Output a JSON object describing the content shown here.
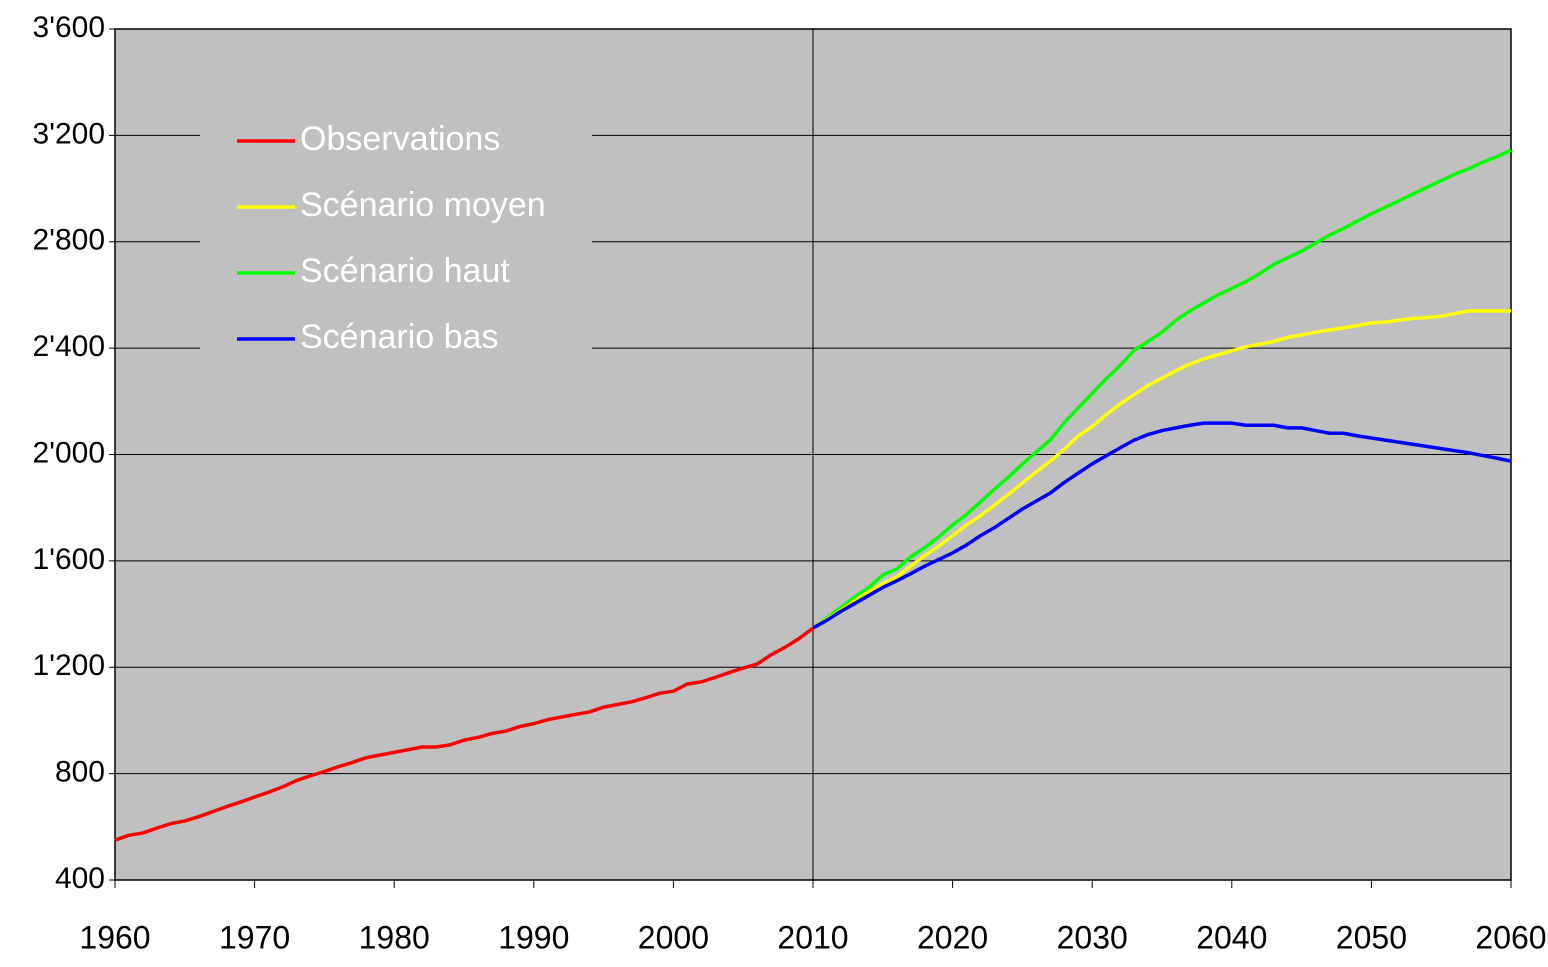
{
  "chart_data": {
    "type": "line",
    "x": [
      1960,
      1961,
      1962,
      1963,
      1964,
      1965,
      1966,
      1967,
      1968,
      1969,
      1970,
      1971,
      1972,
      1973,
      1974,
      1975,
      1976,
      1977,
      1978,
      1979,
      1980,
      1981,
      1982,
      1983,
      1984,
      1985,
      1986,
      1987,
      1988,
      1989,
      1990,
      1991,
      1992,
      1993,
      1994,
      1995,
      1996,
      1997,
      1998,
      1999,
      2000,
      2001,
      2002,
      2003,
      2004,
      2005,
      2006,
      2007,
      2008,
      2009,
      2010,
      2011,
      2012,
      2013,
      2014,
      2015,
      2016,
      2017,
      2018,
      2019,
      2020,
      2021,
      2022,
      2023,
      2024,
      2025,
      2026,
      2027,
      2028,
      2029,
      2030,
      2031,
      2032,
      2033,
      2034,
      2035,
      2036,
      2037,
      2038,
      2039,
      2040,
      2041,
      2042,
      2043,
      2044,
      2045,
      2046,
      2047,
      2048,
      2049,
      2050,
      2051,
      2052,
      2053,
      2054,
      2055,
      2056,
      2057,
      2058,
      2059,
      2060
    ],
    "series": [
      {
        "name": "Observations",
        "color": "#ff0000",
        "values": [
          550,
          568,
          577,
          595,
          612,
          622,
          638,
          657,
          676,
          693,
          712,
          730,
          750,
          774,
          792,
          808,
          826,
          842,
          860,
          870,
          880,
          890,
          900,
          900,
          908,
          926,
          936,
          951,
          960,
          977,
          988,
          1003,
          1013,
          1023,
          1032,
          1050,
          1060,
          1070,
          1085,
          1102,
          1110,
          1137,
          1145,
          1162,
          1180,
          1197,
          1212,
          1247,
          1275,
          1308,
          1347,
          null,
          null,
          null,
          null,
          null,
          null,
          null,
          null,
          null,
          null,
          null,
          null,
          null,
          null,
          null,
          null,
          null,
          null,
          null,
          null,
          null,
          null,
          null,
          null,
          null,
          null,
          null,
          null,
          null,
          null,
          null,
          null,
          null,
          null,
          null,
          null,
          null,
          null,
          null,
          null,
          null,
          null,
          null,
          null,
          null,
          null,
          null,
          null,
          null,
          null
        ]
      },
      {
        "name": "Scénario moyen",
        "color": "#ffff00",
        "values": [
          null,
          null,
          null,
          null,
          null,
          null,
          null,
          null,
          null,
          null,
          null,
          null,
          null,
          null,
          null,
          null,
          null,
          null,
          null,
          null,
          null,
          null,
          null,
          null,
          null,
          null,
          null,
          null,
          null,
          null,
          null,
          null,
          null,
          null,
          null,
          null,
          null,
          null,
          null,
          null,
          null,
          null,
          null,
          null,
          null,
          null,
          null,
          null,
          null,
          null,
          1347,
          1380,
          1415,
          1450,
          1485,
          1515,
          1540,
          1580,
          1620,
          1655,
          1695,
          1735,
          1770,
          1810,
          1850,
          1893,
          1935,
          1975,
          2020,
          2070,
          2105,
          2150,
          2190,
          2225,
          2260,
          2287,
          2315,
          2340,
          2360,
          2375,
          2390,
          2405,
          2415,
          2425,
          2440,
          2450,
          2460,
          2468,
          2476,
          2485,
          2495,
          2498,
          2505,
          2512,
          2515,
          2520,
          2530,
          2540,
          2540,
          2540,
          2540
        ]
      },
      {
        "name": "Scénario haut",
        "color": "#00ff00",
        "values": [
          null,
          null,
          null,
          null,
          null,
          null,
          null,
          null,
          null,
          null,
          null,
          null,
          null,
          null,
          null,
          null,
          null,
          null,
          null,
          null,
          null,
          null,
          null,
          null,
          null,
          null,
          null,
          null,
          null,
          null,
          null,
          null,
          null,
          null,
          null,
          null,
          null,
          null,
          null,
          null,
          null,
          null,
          null,
          null,
          null,
          null,
          null,
          null,
          null,
          null,
          1347,
          1385,
          1425,
          1465,
          1500,
          1547,
          1570,
          1615,
          1650,
          1690,
          1735,
          1775,
          1822,
          1870,
          1915,
          1964,
          2010,
          2055,
          2120,
          2175,
          2230,
          2285,
          2335,
          2392,
          2425,
          2460,
          2505,
          2540,
          2570,
          2600,
          2625,
          2650,
          2680,
          2715,
          2740,
          2765,
          2795,
          2825,
          2850,
          2878,
          2905,
          2930,
          2955,
          2980,
          3005,
          3030,
          3055,
          3075,
          3100,
          3120,
          3144
        ]
      },
      {
        "name": "Scénario bas",
        "color": "#0000ff",
        "values": [
          null,
          null,
          null,
          null,
          null,
          null,
          null,
          null,
          null,
          null,
          null,
          null,
          null,
          null,
          null,
          null,
          null,
          null,
          null,
          null,
          null,
          null,
          null,
          null,
          null,
          null,
          null,
          null,
          null,
          null,
          null,
          null,
          null,
          null,
          null,
          null,
          null,
          null,
          null,
          null,
          null,
          null,
          null,
          null,
          null,
          null,
          null,
          null,
          null,
          null,
          1347,
          1377,
          1410,
          1440,
          1470,
          1500,
          1525,
          1552,
          1580,
          1605,
          1630,
          1660,
          1695,
          1725,
          1760,
          1795,
          1825,
          1855,
          1895,
          1930,
          1965,
          1995,
          2025,
          2054,
          2075,
          2090,
          2100,
          2110,
          2118,
          2118,
          2118,
          2110,
          2110,
          2110,
          2100,
          2100,
          2090,
          2080,
          2080,
          2070,
          2062,
          2054,
          2046,
          2038,
          2030,
          2022,
          2014,
          2006,
          1996,
          1986,
          1975
        ]
      }
    ],
    "xlim": [
      1960,
      2060
    ],
    "xticks": [
      1960,
      1970,
      1980,
      1990,
      2000,
      2010,
      2020,
      2030,
      2040,
      2050,
      2060
    ],
    "ylim": [
      400,
      3600
    ],
    "yticks": [
      400,
      800,
      {
        "value": 1200,
        "label": "1'200"
      },
      {
        "value": 1600,
        "label": "1'600"
      },
      {
        "value": 2000,
        "label": "2'000"
      },
      {
        "value": 2400,
        "label": "2'400"
      },
      {
        "value": 2800,
        "label": "2'800"
      },
      {
        "value": 3200,
        "label": "3'200"
      },
      {
        "value": 3600,
        "label": "3'600"
      }
    ],
    "grid": true,
    "vline": 2010,
    "legend": "upper left",
    "background": "#c0c0c0"
  }
}
